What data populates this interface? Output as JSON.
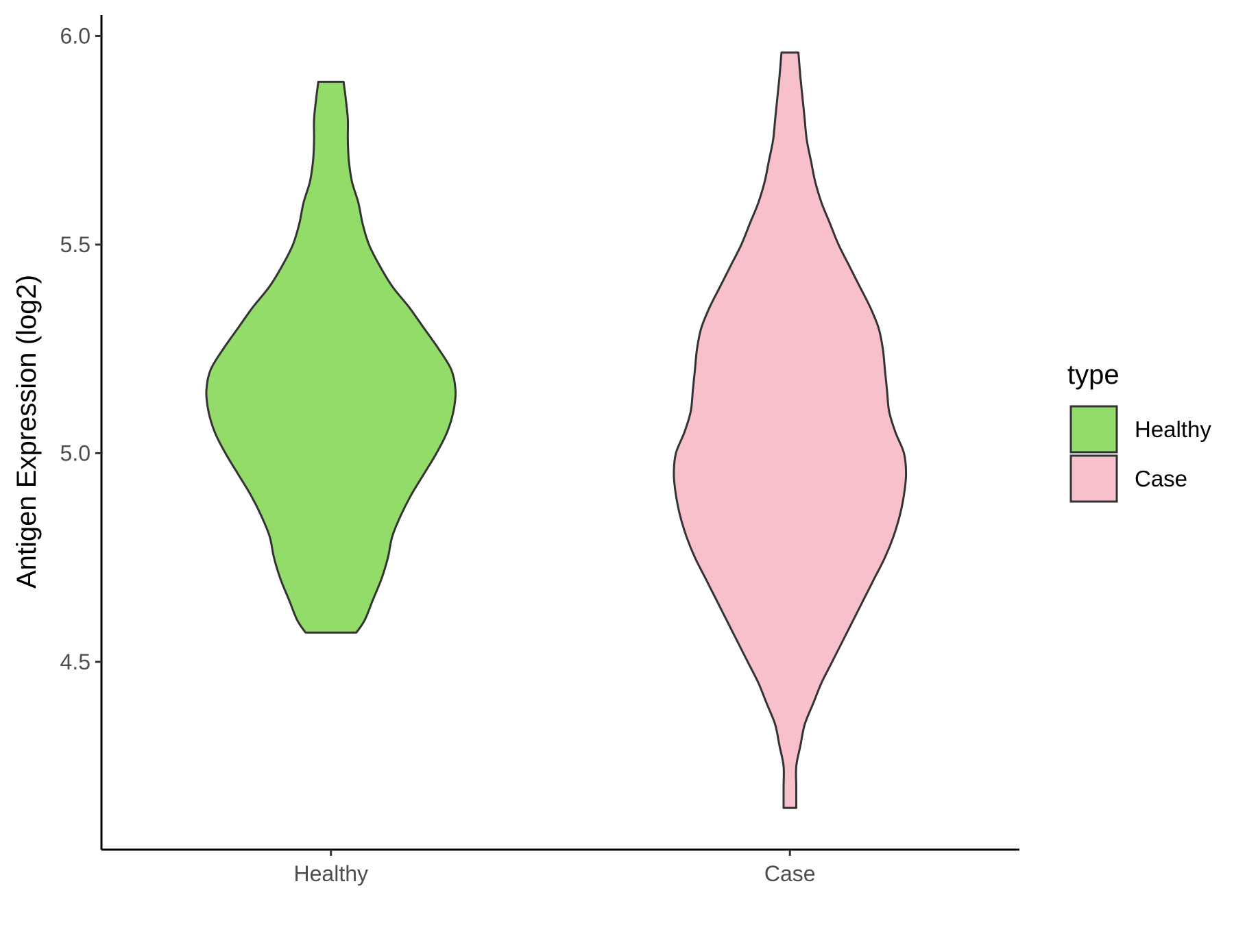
{
  "chart_data": {
    "type": "violin",
    "ylabel": "Antigen Expression (log2)",
    "xlabel": "",
    "ylim": [
      4.05,
      6.05
    ],
    "yticks": [
      4.5,
      5.0,
      5.5,
      6.0
    ],
    "ytick_labels": [
      "4.5",
      "5.0",
      "5.5",
      "6.0"
    ],
    "categories": [
      "Healthy",
      "Case"
    ],
    "grid": false,
    "legend": {
      "title": "type",
      "position": "right",
      "entries": [
        "Healthy",
        "Case"
      ]
    },
    "series": [
      {
        "name": "Healthy",
        "color": "#93DC6A",
        "min": 4.57,
        "max": 5.89,
        "density_half_width": [
          [
            4.57,
            0.12
          ],
          [
            4.6,
            0.16
          ],
          [
            4.65,
            0.2
          ],
          [
            4.7,
            0.24
          ],
          [
            4.75,
            0.27
          ],
          [
            4.8,
            0.29
          ],
          [
            4.85,
            0.33
          ],
          [
            4.9,
            0.38
          ],
          [
            4.95,
            0.44
          ],
          [
            5.0,
            0.5
          ],
          [
            5.05,
            0.55
          ],
          [
            5.1,
            0.58
          ],
          [
            5.15,
            0.59
          ],
          [
            5.2,
            0.57
          ],
          [
            5.25,
            0.51
          ],
          [
            5.3,
            0.44
          ],
          [
            5.35,
            0.37
          ],
          [
            5.4,
            0.29
          ],
          [
            5.45,
            0.23
          ],
          [
            5.5,
            0.18
          ],
          [
            5.55,
            0.15
          ],
          [
            5.6,
            0.13
          ],
          [
            5.65,
            0.1
          ],
          [
            5.7,
            0.085
          ],
          [
            5.75,
            0.08
          ],
          [
            5.8,
            0.08
          ],
          [
            5.85,
            0.07
          ],
          [
            5.89,
            0.06
          ]
        ]
      },
      {
        "name": "Case",
        "color": "#F7C0CB",
        "min": 4.15,
        "max": 5.96,
        "density_half_width": [
          [
            4.15,
            0.03
          ],
          [
            4.2,
            0.03
          ],
          [
            4.25,
            0.03
          ],
          [
            4.3,
            0.05
          ],
          [
            4.35,
            0.07
          ],
          [
            4.4,
            0.11
          ],
          [
            4.45,
            0.15
          ],
          [
            4.5,
            0.2
          ],
          [
            4.55,
            0.25
          ],
          [
            4.6,
            0.3
          ],
          [
            4.65,
            0.35
          ],
          [
            4.7,
            0.4
          ],
          [
            4.75,
            0.45
          ],
          [
            4.8,
            0.49
          ],
          [
            4.85,
            0.52
          ],
          [
            4.9,
            0.54
          ],
          [
            4.95,
            0.55
          ],
          [
            5.0,
            0.54
          ],
          [
            5.05,
            0.5
          ],
          [
            5.1,
            0.47
          ],
          [
            5.15,
            0.46
          ],
          [
            5.2,
            0.45
          ],
          [
            5.25,
            0.44
          ],
          [
            5.3,
            0.42
          ],
          [
            5.35,
            0.38
          ],
          [
            5.4,
            0.33
          ],
          [
            5.45,
            0.28
          ],
          [
            5.5,
            0.23
          ],
          [
            5.55,
            0.19
          ],
          [
            5.6,
            0.15
          ],
          [
            5.65,
            0.12
          ],
          [
            5.7,
            0.1
          ],
          [
            5.75,
            0.08
          ],
          [
            5.8,
            0.07
          ],
          [
            5.85,
            0.06
          ],
          [
            5.9,
            0.05
          ],
          [
            5.96,
            0.04
          ]
        ]
      }
    ]
  }
}
